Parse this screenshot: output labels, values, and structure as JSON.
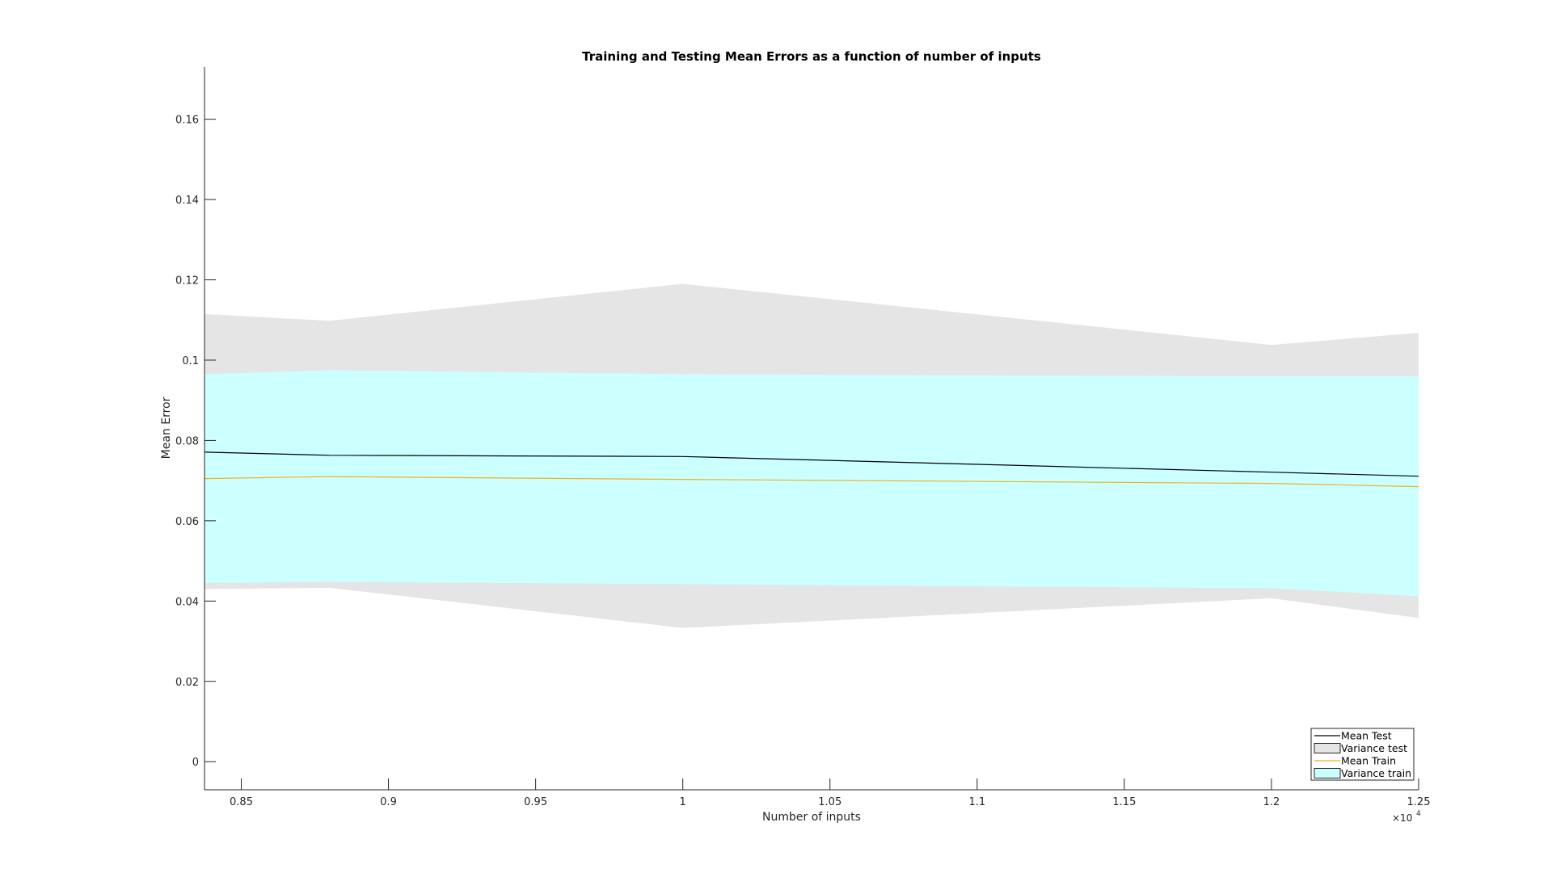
{
  "chart_data": {
    "type": "area",
    "title": "Training and Testing Mean Errors as a function of number of inputs",
    "xlabel": "Number of inputs",
    "ylabel": "Mean Error",
    "x_exponent_label": "×10",
    "x_exponent_power": "4",
    "xlim": [
      0.8375,
      1.25
    ],
    "ylim": [
      -0.007,
      0.173
    ],
    "xticks": [
      0.85,
      0.9,
      0.95,
      1,
      1.05,
      1.1,
      1.15,
      1.2,
      1.25
    ],
    "xtick_labels": [
      "0.85",
      "0.9",
      "0.95",
      "1",
      "1.05",
      "1.1",
      "1.15",
      "1.2",
      "1.25"
    ],
    "yticks": [
      0,
      0.02,
      0.04,
      0.06,
      0.08,
      0.1,
      0.12,
      0.14,
      0.16
    ],
    "ytick_labels": [
      "0",
      "0.02",
      "0.04",
      "0.06",
      "0.08",
      "0.1",
      "0.12",
      "0.14",
      "0.16"
    ],
    "x": [
      0.8375,
      0.88,
      1.0,
      1.2,
      1.25
    ],
    "series": [
      {
        "name": "Variance test",
        "kind": "band",
        "upper": [
          0.1115,
          0.1098,
          0.119,
          0.1038,
          0.1068
        ],
        "lower": [
          0.043,
          0.0433,
          0.0333,
          0.0407,
          0.0358
        ],
        "color": "#e5e5e5"
      },
      {
        "name": "Variance train",
        "kind": "band",
        "upper": [
          0.0965,
          0.0975,
          0.0965,
          0.096,
          0.096
        ],
        "lower": [
          0.0445,
          0.0448,
          0.0442,
          0.0432,
          0.0412
        ],
        "color": "#ccffff"
      },
      {
        "name": "Mean Test",
        "kind": "line",
        "values": [
          0.0771,
          0.0763,
          0.076,
          0.0721,
          0.0711
        ],
        "color": "#000000"
      },
      {
        "name": "Mean Train",
        "kind": "line",
        "values": [
          0.0705,
          0.071,
          0.0703,
          0.0693,
          0.0685
        ],
        "color": "#edb120"
      }
    ],
    "legend": {
      "placement": "bottom-right",
      "entries": [
        "Mean Test",
        "Variance test",
        "Mean Train",
        "Variance train"
      ]
    },
    "grid": false
  }
}
